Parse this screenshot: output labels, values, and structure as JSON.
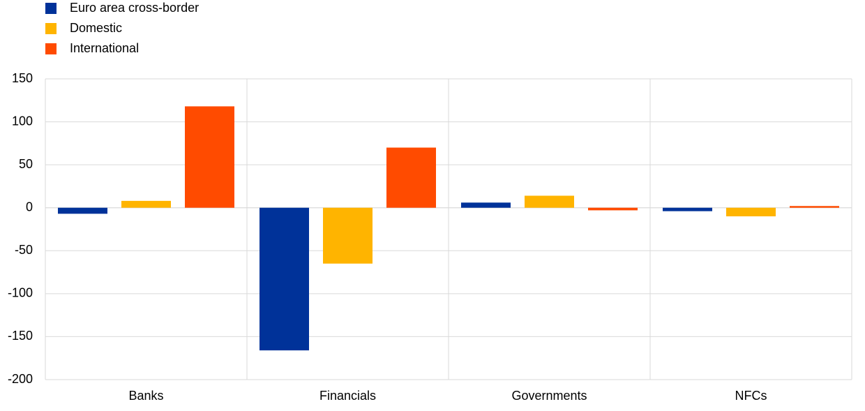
{
  "chart_data": {
    "type": "bar",
    "categories": [
      "Banks",
      "Financials",
      "Governments",
      "NFCs"
    ],
    "series": [
      {
        "name": "Euro area cross-border",
        "color": "#003299",
        "values": [
          -7,
          -166,
          6,
          -4
        ]
      },
      {
        "name": "Domestic",
        "color": "#ffb400",
        "values": [
          8,
          -65,
          14,
          -10
        ]
      },
      {
        "name": "International",
        "color": "#ff4b00",
        "values": [
          118,
          70,
          -3,
          2
        ]
      }
    ],
    "ylim": [
      -200,
      150
    ],
    "yticks": [
      -200,
      -150,
      -100,
      -50,
      0,
      50,
      100,
      150
    ],
    "grid": true,
    "legend": "top-left"
  }
}
